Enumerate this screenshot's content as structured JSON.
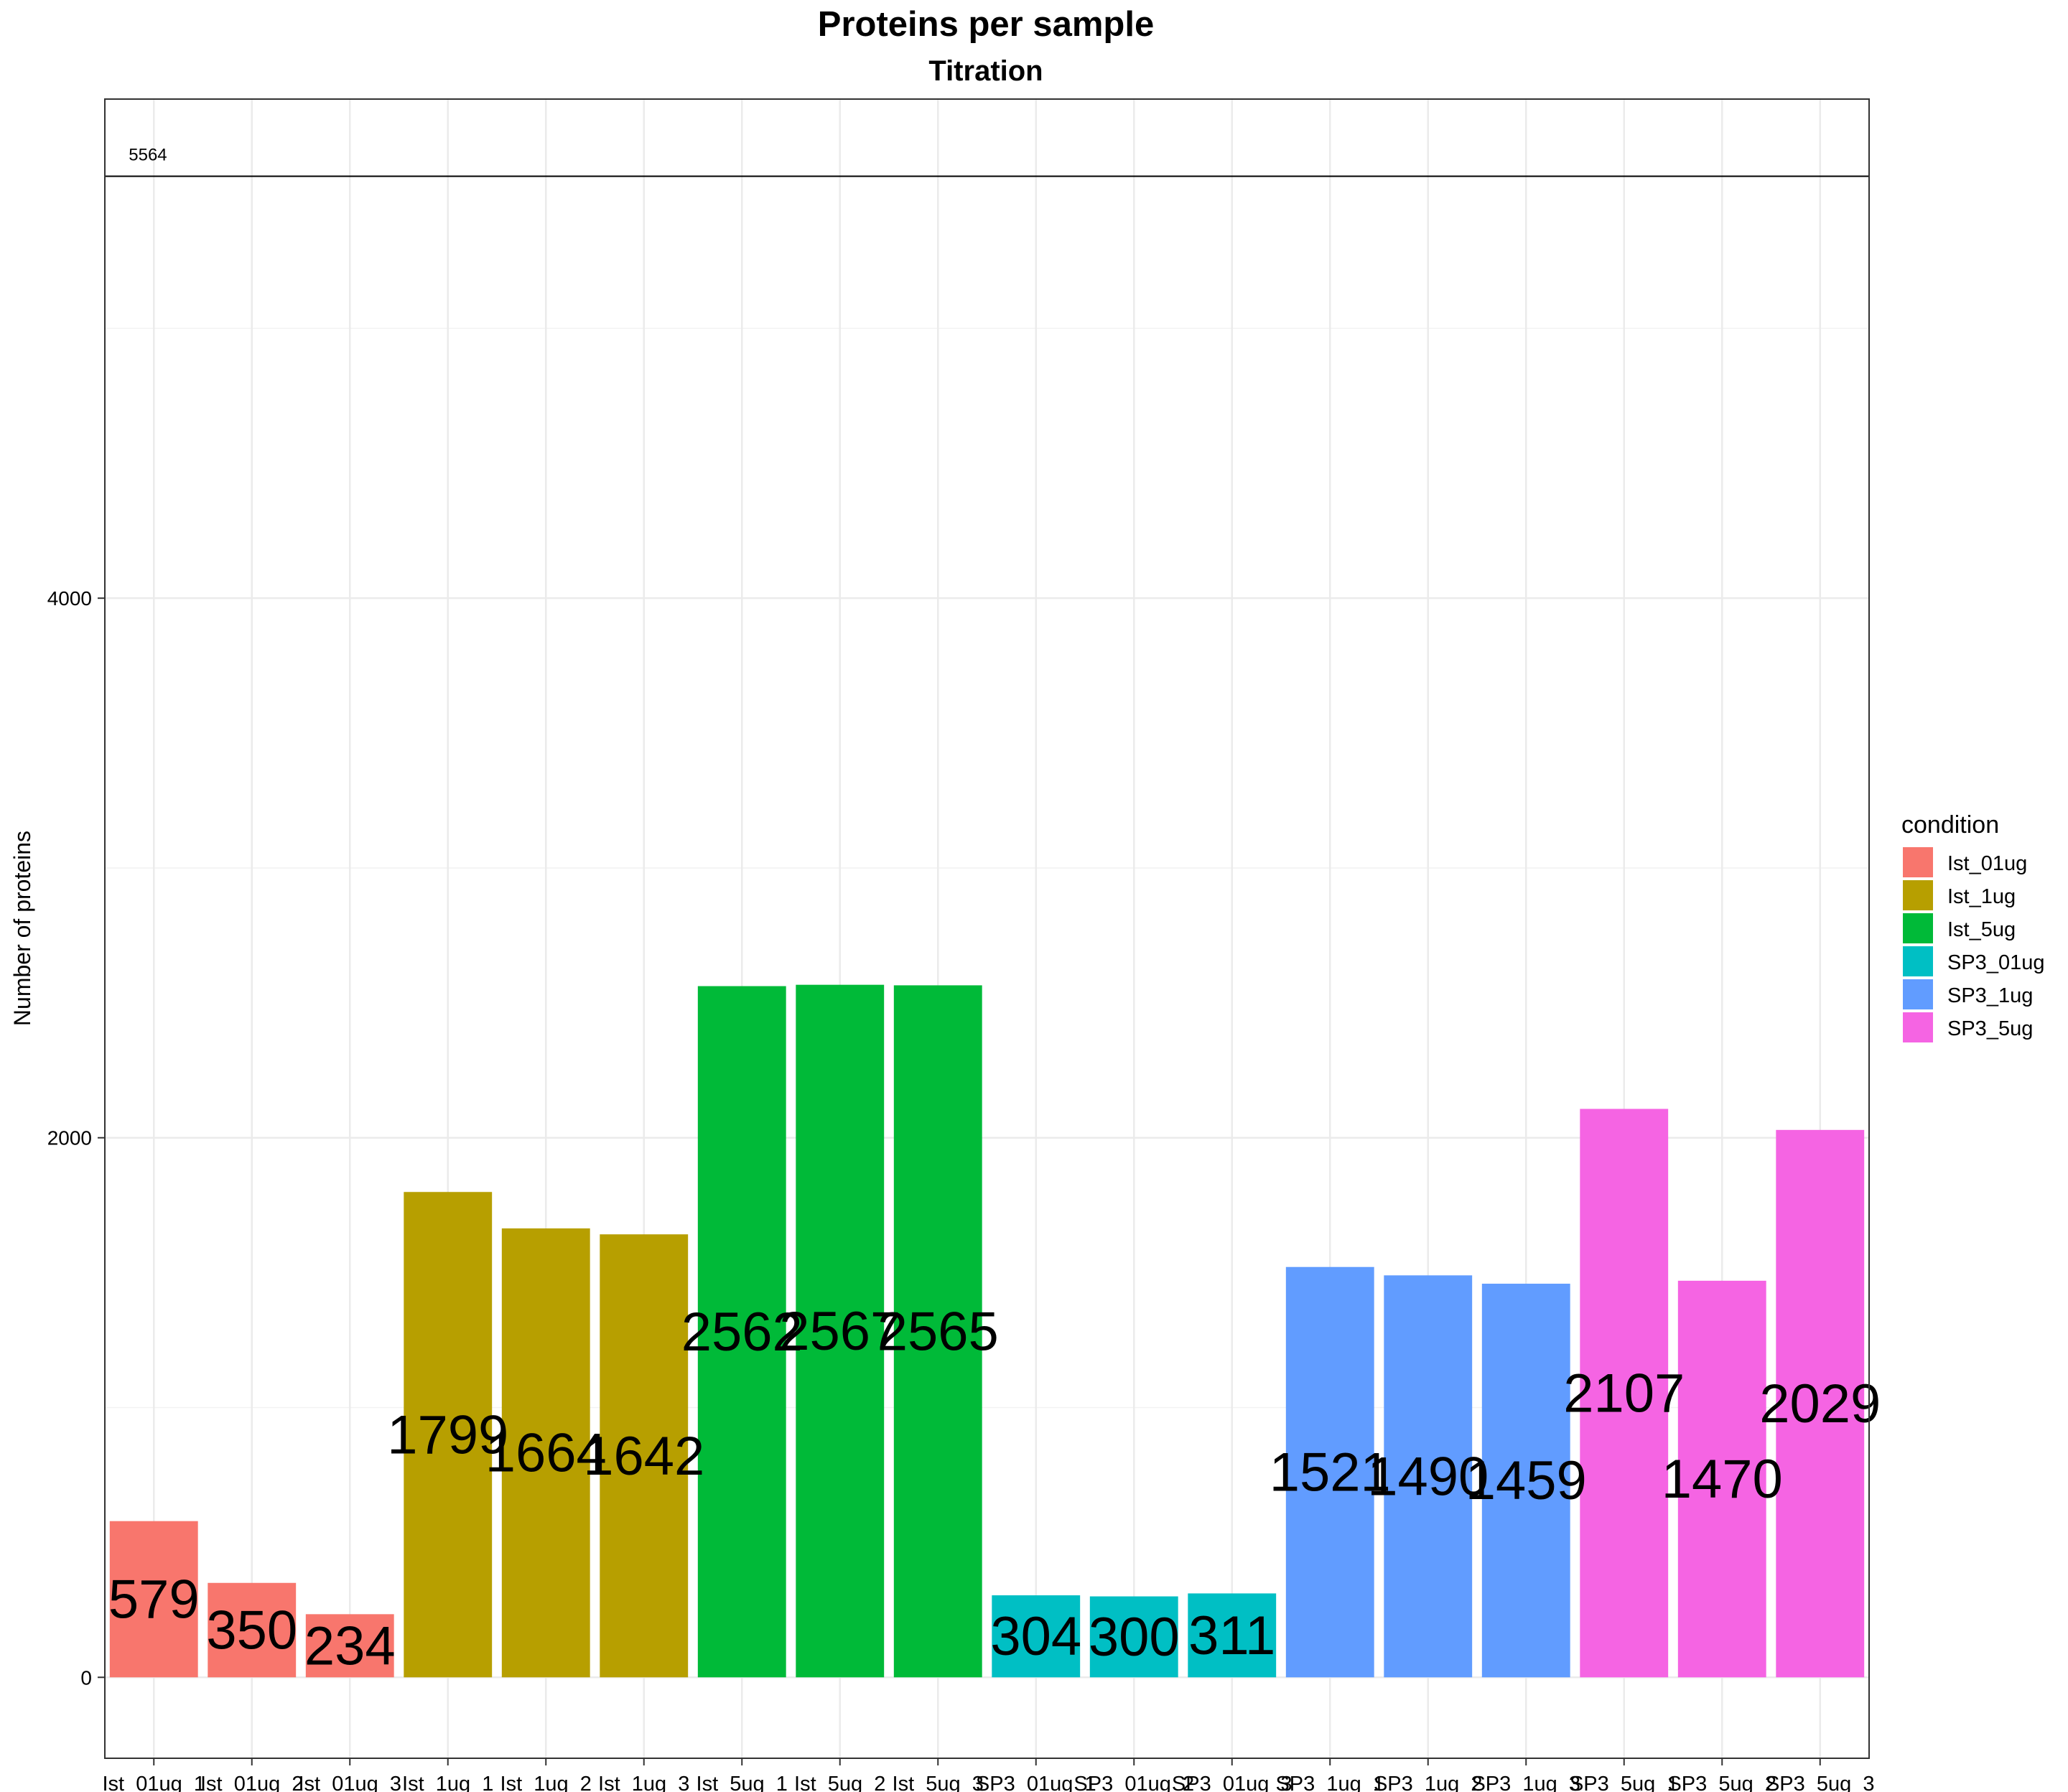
{
  "chart_data": {
    "type": "bar",
    "title": "Proteins per sample",
    "subtitle": "Titration",
    "xlabel": "",
    "ylabel": "Number of proteins",
    "ylim": [
      -300,
      5850
    ],
    "y_ticks": [
      0,
      2000,
      4000
    ],
    "grid": true,
    "legend_position": "right",
    "legend_title": "condition",
    "reference_line": {
      "value": 5564,
      "label": "5564"
    },
    "conditions": [
      {
        "name": "Ist_01ug",
        "color": "#F8766D"
      },
      {
        "name": "Ist_1ug",
        "color": "#B79F00"
      },
      {
        "name": "Ist_5ug",
        "color": "#00BA38"
      },
      {
        "name": "SP3_01ug",
        "color": "#00BFC4"
      },
      {
        "name": "SP3_1ug",
        "color": "#619CFF"
      },
      {
        "name": "SP3_5ug",
        "color": "#F564E3"
      }
    ],
    "categories": [
      "Ist_01ug_1",
      "Ist_01ug_2",
      "Ist_01ug_3",
      "Ist_1ug_1",
      "Ist_1ug_2",
      "Ist_1ug_3",
      "Ist_5ug_1",
      "Ist_5ug_2",
      "Ist_5ug_3",
      "SP3_01ug_1",
      "SP3_01ug_2",
      "SP3_01ug_3",
      "SP3_1ug_1",
      "SP3_1ug_2",
      "SP3_1ug_3",
      "SP3_5ug_1",
      "SP3_5ug_2",
      "SP3_5ug_3"
    ],
    "bar_condition": [
      0,
      0,
      0,
      1,
      1,
      1,
      2,
      2,
      2,
      3,
      3,
      3,
      4,
      4,
      4,
      5,
      5,
      5
    ],
    "values": [
      579,
      350,
      234,
      1799,
      1664,
      1642,
      2562,
      2567,
      2565,
      304,
      300,
      311,
      1521,
      1490,
      1459,
      2107,
      1470,
      2029
    ],
    "bar_labels": [
      "579",
      "350",
      "234",
      "1799",
      "1664",
      "1642",
      "2562",
      "2567",
      "2565",
      "304",
      "300",
      "311",
      "1521",
      "1490",
      "1459",
      "2107",
      "1470",
      "2029"
    ]
  }
}
